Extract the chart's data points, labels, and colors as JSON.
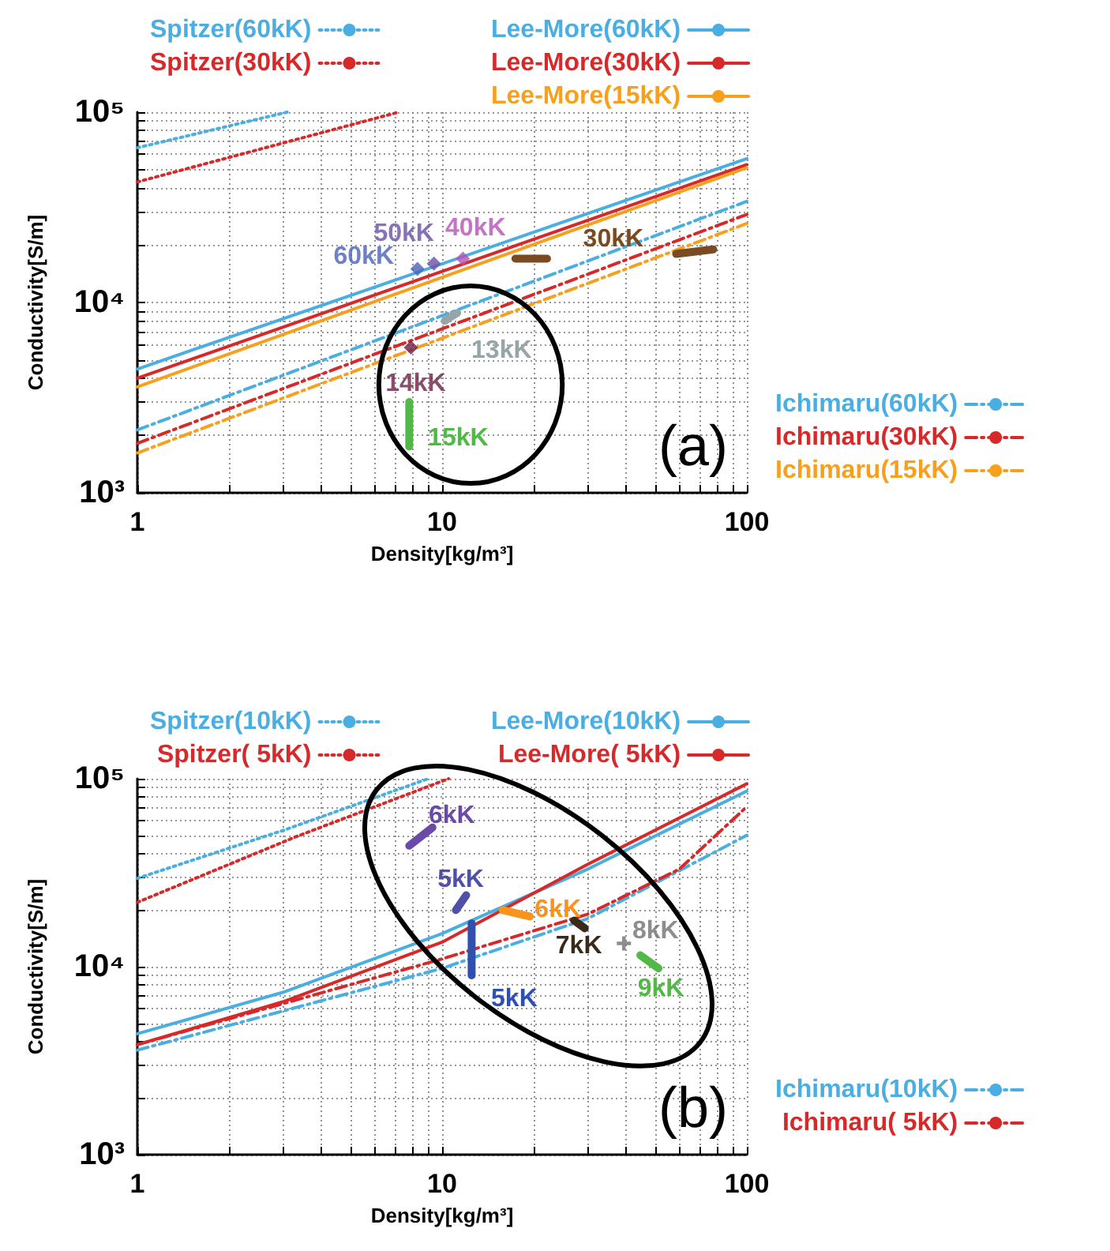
{
  "chart_data": [
    {
      "type": "line",
      "xlabel": "Density[kg/m³]",
      "ylabel": "Conductivity[S/m]",
      "log": "xy",
      "grid": true,
      "legend": "top right",
      "marker": "none",
      "annotations": [
        "(a)"
      ],
      "xlim": [
        1,
        100
      ],
      "xticks": [
        1,
        {
          "value": 2,
          "label": null
        },
        {
          "value": 3,
          "label": null
        },
        {
          "value": 4,
          "label": null
        },
        {
          "value": 5,
          "label": null
        },
        {
          "value": 6,
          "label": null
        },
        {
          "value": 7,
          "label": null
        },
        {
          "value": 8,
          "label": null
        },
        {
          "value": 9,
          "label": null
        },
        10,
        {
          "value": 20,
          "label": null
        },
        {
          "value": 30,
          "label": null
        },
        {
          "value": 40,
          "label": null
        },
        {
          "value": 50,
          "label": null
        },
        {
          "value": 60,
          "label": null
        },
        {
          "value": 70,
          "label": null
        },
        {
          "value": 80,
          "label": null
        },
        {
          "value": 90,
          "label": null
        },
        100
      ],
      "ylim": [
        1000,
        100000
      ],
      "yticks": [
        {
          "value": 1000,
          "label": "10³"
        },
        {
          "value": 2000,
          "label": null
        },
        {
          "value": 3000,
          "label": null
        },
        {
          "value": 4000,
          "label": null
        },
        {
          "value": 5000,
          "label": null
        },
        {
          "value": 6000,
          "label": null
        },
        {
          "value": 7000,
          "label": null
        },
        {
          "value": 8000,
          "label": null
        },
        {
          "value": 9000,
          "label": null
        },
        {
          "value": 10000,
          "label": "10⁴"
        },
        {
          "value": 20000,
          "label": null
        },
        {
          "value": 30000,
          "label": null
        },
        {
          "value": 40000,
          "label": null
        },
        {
          "value": 50000,
          "label": null
        },
        {
          "value": 60000,
          "label": null
        },
        {
          "value": 70000,
          "label": null
        },
        {
          "value": 80000,
          "label": null
        },
        {
          "value": 90000,
          "label": null
        },
        {
          "value": 100000,
          "label": "10⁵"
        }
      ],
      "series": [
        {
          "name": "Spitzer(60kK)",
          "color": "#4aaee2",
          "line_style": "dotted",
          "x": [
            1,
            3.1
          ],
          "values": [
            65000,
            100000
          ]
        },
        {
          "name": "Spitzer(30kK)",
          "color": "#d62a2a",
          "line_style": "dotted",
          "x": [
            1,
            7.2
          ],
          "values": [
            43000,
            100000
          ]
        },
        {
          "name": "Lee-More(60kK)",
          "color": "#4aaee2",
          "line_style": "solid",
          "x": [
            1,
            100
          ],
          "values": [
            4470,
            57000
          ]
        },
        {
          "name": "Lee-More(30kK)",
          "color": "#d62a2a",
          "line_style": "solid",
          "x": [
            1,
            100
          ],
          "values": [
            4000,
            53000
          ]
        },
        {
          "name": "Lee-More(15kK)",
          "color": "#f7a01e",
          "line_style": "solid",
          "x": [
            1,
            100
          ],
          "values": [
            3600,
            51000
          ]
        },
        {
          "name": "Ichimaru(60kK)",
          "color": "#4aaee2",
          "line_style": "dashdot",
          "x": [
            1,
            100
          ],
          "values": [
            2140,
            34000
          ]
        },
        {
          "name": "Ichimaru(30kK)",
          "color": "#d62a2a",
          "line_style": "dashdot",
          "x": [
            1,
            100
          ],
          "values": [
            1820,
            29000
          ]
        },
        {
          "name": "Ichimaru(15kK)",
          "color": "#f7a01e",
          "line_style": "dashdot",
          "x": [
            1,
            100
          ],
          "values": [
            1620,
            26000
          ]
        },
        {
          "name": "60kK",
          "type": "scatter",
          "marker": "diamond",
          "color": "#4a62b8",
          "x": [
            8.3
          ],
          "values": [
            15000
          ]
        },
        {
          "name": "50kK",
          "type": "scatter",
          "marker": "diamond",
          "color": "#6a50a8",
          "x": [
            9.4
          ],
          "values": [
            16000
          ]
        },
        {
          "name": "40kK",
          "type": "scatter",
          "marker": "diamond",
          "color": "#b452b4",
          "x": [
            11.7
          ],
          "values": [
            17000
          ]
        },
        {
          "name": "30kK",
          "color": "#7a4a20",
          "x": [
            17.4,
            22.1
          ],
          "values": [
            17000,
            17000
          ]
        },
        {
          "color": "#7a4a20",
          "x": [
            58.6,
            77.6
          ],
          "values": [
            18000,
            19000
          ]
        },
        {
          "name": "13kK",
          "color": "#97a5a6",
          "x": [
            10.2,
            11.2
          ],
          "values": [
            8000,
            8800
          ]
        },
        {
          "name": "14kK",
          "type": "scatter",
          "marker": "diamond",
          "color": "#6e1e48",
          "x": [
            7.9
          ],
          "values": [
            5800
          ]
        },
        {
          "name": "15kK",
          "color": "#52b848",
          "x": [
            7.8,
            7.8
          ],
          "values": [
            3000,
            1750
          ]
        }
      ]
    },
    {
      "type": "line",
      "xlabel": "Density[kg/m³]",
      "ylabel": "Conductivity[S/m]",
      "log": "xy",
      "grid": true,
      "legend": "top right",
      "marker": "none",
      "annotations": [
        "(b)"
      ],
      "xlim": [
        1,
        100
      ],
      "xticks": [
        1,
        {
          "value": 2,
          "label": null
        },
        {
          "value": 3,
          "label": null
        },
        {
          "value": 4,
          "label": null
        },
        {
          "value": 5,
          "label": null
        },
        {
          "value": 6,
          "label": null
        },
        {
          "value": 7,
          "label": null
        },
        {
          "value": 8,
          "label": null
        },
        {
          "value": 9,
          "label": null
        },
        10,
        {
          "value": 20,
          "label": null
        },
        {
          "value": 30,
          "label": null
        },
        {
          "value": 40,
          "label": null
        },
        {
          "value": 50,
          "label": null
        },
        {
          "value": 60,
          "label": null
        },
        {
          "value": 70,
          "label": null
        },
        {
          "value": 80,
          "label": null
        },
        {
          "value": 90,
          "label": null
        },
        100
      ],
      "ylim": [
        1000,
        100000
      ],
      "yticks": [
        {
          "value": 1000,
          "label": "10³"
        },
        {
          "value": 2000,
          "label": null
        },
        {
          "value": 3000,
          "label": null
        },
        {
          "value": 4000,
          "label": null
        },
        {
          "value": 5000,
          "label": null
        },
        {
          "value": 6000,
          "label": null
        },
        {
          "value": 7000,
          "label": null
        },
        {
          "value": 8000,
          "label": null
        },
        {
          "value": 9000,
          "label": null
        },
        {
          "value": 10000,
          "label": "10⁴"
        },
        {
          "value": 20000,
          "label": null
        },
        {
          "value": 30000,
          "label": null
        },
        {
          "value": 40000,
          "label": null
        },
        {
          "value": 50000,
          "label": null
        },
        {
          "value": 60000,
          "label": null
        },
        {
          "value": 70000,
          "label": null
        },
        {
          "value": 80000,
          "label": null
        },
        {
          "value": 90000,
          "label": null
        },
        {
          "value": 100000,
          "label": "10⁵"
        }
      ],
      "series": [
        {
          "name": "Spitzer(10kK)",
          "color": "#4aaee2",
          "line_style": "dotted",
          "x": [
            1,
            3,
            9
          ],
          "values": [
            29500,
            53000,
            100000
          ]
        },
        {
          "name": "Spitzer( 5kK)",
          "color": "#d62a2a",
          "line_style": "dotted",
          "x": [
            1,
            3.3,
            10.5
          ],
          "values": [
            22000,
            49000,
            100000
          ]
        },
        {
          "name": "Lee-More(10kK)",
          "color": "#4aaee2",
          "line_style": "solid",
          "x": [
            1,
            3,
            10,
            30,
            100
          ],
          "values": [
            4400,
            7300,
            15000,
            33000,
            86000
          ]
        },
        {
          "name": "Lee-More( 5kK)",
          "color": "#d62a2a",
          "line_style": "solid",
          "x": [
            1,
            3,
            10,
            30,
            100
          ],
          "values": [
            3850,
            6500,
            13500,
            35000,
            94000
          ]
        },
        {
          "name": "Ichimaru(10kK)",
          "color": "#4aaee2",
          "line_style": "dashdot",
          "x": [
            1,
            10,
            30,
            100
          ],
          "values": [
            3600,
            9800,
            18000,
            50000
          ]
        },
        {
          "name": "Ichimaru( 5kK)",
          "color": "#d62a2a",
          "line_style": "dashdot",
          "x": [
            1,
            10,
            30,
            60,
            100
          ],
          "values": [
            3850,
            11000,
            19000,
            33000,
            71000
          ]
        },
        {
          "name": "6kK",
          "color": "#6a4aa8",
          "x": [
            7.8,
            9.3
          ],
          "values": [
            44000,
            55000
          ]
        },
        {
          "name": "5kK",
          "color": "#5050a8",
          "x": [
            11.1,
            12.0
          ],
          "values": [
            20000,
            24000
          ]
        },
        {
          "name": "5kK",
          "color": "#3050b0",
          "x": [
            12.5,
            12.5
          ],
          "values": [
            17000,
            9000
          ]
        },
        {
          "name": "6kK",
          "color": "#f7941d",
          "x": [
            15.8,
            19.4
          ],
          "values": [
            20000,
            18500
          ]
        },
        {
          "name": "7kK",
          "color": "#3a2a1a",
          "x": [
            27.1,
            29.4
          ],
          "values": [
            17600,
            16000
          ]
        },
        {
          "name": "8kK",
          "type": "scatter",
          "marker": "cross",
          "color": "#707070",
          "x": [
            39.5
          ],
          "values": [
            13300
          ]
        },
        {
          "name": "9kK",
          "color": "#52b848",
          "x": [
            44.7,
            51.3
          ],
          "values": [
            11500,
            9800
          ]
        }
      ]
    }
  ]
}
